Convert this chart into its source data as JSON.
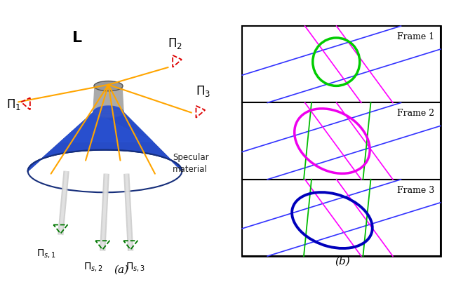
{
  "title_a": "(a)",
  "title_b": "(b)",
  "frame_labels": [
    "Frame 1",
    "Frame 2",
    "Frame 3"
  ],
  "ellipse_colors": [
    "#00cc00",
    "#ee00ee",
    "#0000bb"
  ],
  "line_color_blue": "#3333ff",
  "line_color_green": "#00bb00",
  "line_color_magenta": "#ff00ff",
  "bg_color": "#ffffff",
  "orange_color": "#FFA500",
  "red_camera": "#dd0000",
  "green_camera": "#007700",
  "surface_blue_light": "#2255cc",
  "surface_blue_dark": "#162e7a",
  "surface_blue_mid": "#1e3fa0",
  "gray_tube": "#aaaaaa",
  "gray_dark": "#777777"
}
